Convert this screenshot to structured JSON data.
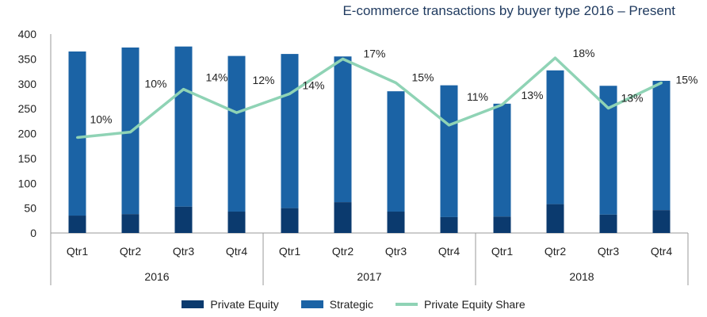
{
  "chart_data": {
    "type": "bar",
    "title": "E-commerce transactions by buyer type 2016 – Present",
    "ylim": [
      0,
      400
    ],
    "yticks": [
      0,
      50,
      100,
      150,
      200,
      250,
      300,
      350,
      400
    ],
    "grid": false,
    "legend_position": "bottom",
    "groups": [
      {
        "label": "2016",
        "categories": [
          "Qtr1",
          "Qtr2",
          "Qtr3",
          "Qtr4"
        ]
      },
      {
        "label": "2017",
        "categories": [
          "Qtr1",
          "Qtr2",
          "Qtr3",
          "Qtr4"
        ]
      },
      {
        "label": "2018",
        "categories": [
          "Qtr1",
          "Qtr2",
          "Qtr3",
          "Qtr4"
        ]
      }
    ],
    "series": [
      {
        "name": "Private Equity",
        "kind": "stacked-bar",
        "color": "#0b3a6e",
        "values": [
          35,
          38,
          53,
          43,
          50,
          62,
          43,
          32,
          33,
          58,
          37,
          46
        ]
      },
      {
        "name": "Strategic",
        "kind": "stacked-bar",
        "color": "#1b63a5",
        "values": [
          330,
          335,
          322,
          313,
          310,
          293,
          242,
          265,
          227,
          269,
          259,
          260
        ]
      },
      {
        "name": "Private Equity Share",
        "kind": "line",
        "color": "#8fd3b5",
        "values": [
          10,
          10,
          14,
          12,
          14,
          17,
          15,
          11,
          13,
          18,
          13,
          15
        ],
        "labels": [
          "10%",
          "10%",
          "14%",
          "12%",
          "14%",
          "17%",
          "15%",
          "11%",
          "13%",
          "18%",
          "13%",
          "15%"
        ],
        "line_on_left_axis": [
          192,
          203,
          289,
          242,
          280,
          350,
          302,
          217,
          258,
          352,
          251,
          302
        ]
      }
    ]
  }
}
